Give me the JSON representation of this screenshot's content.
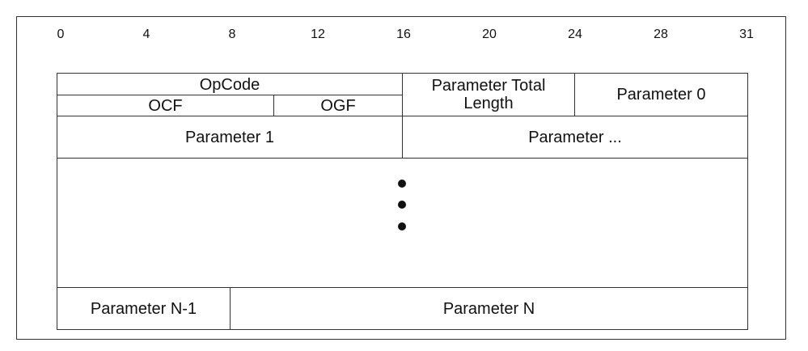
{
  "bit_ruler": [
    0,
    4,
    8,
    12,
    16,
    20,
    24,
    28,
    31
  ],
  "fields": {
    "opcode": "OpCode",
    "ocf": "OCF",
    "ogf": "OGF",
    "parameter_total_length": "Parameter Total Length",
    "parameter_0": "Parameter 0",
    "parameter_1": "Parameter 1",
    "parameter_more": "Parameter ...",
    "parameter_n_minus_1": "Parameter N-1",
    "parameter_n": "Parameter N"
  }
}
